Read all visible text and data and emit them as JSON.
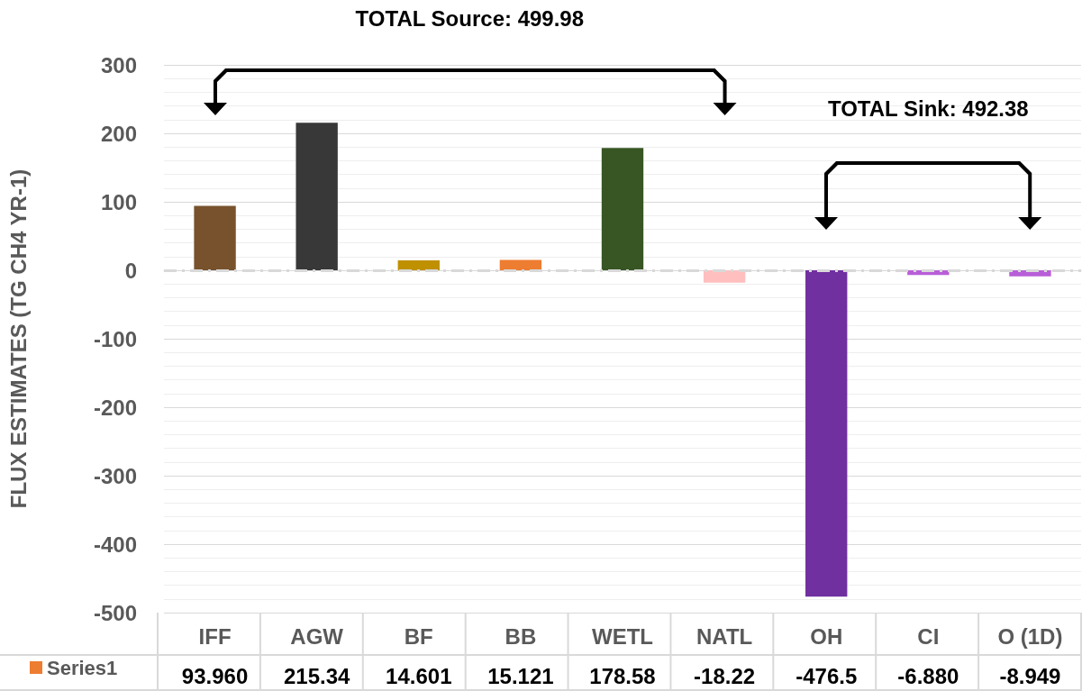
{
  "chart_data": {
    "type": "bar",
    "ylabel": "FLUX ESTIMATES (TG CH4 YR-1)",
    "categories": [
      "IFF",
      "AGW",
      "BF",
      "BB",
      "WETL",
      "NATL",
      "OH",
      "CI",
      "O (1D)"
    ],
    "series": [
      {
        "name": "Series1",
        "color": "#ed7d31",
        "colors": [
          "#77522c",
          "#383838",
          "#bf9000",
          "#ed7d31",
          "#375623",
          "#ffbfbf",
          "#7030a0",
          "#b85ed8",
          "#b85ed8"
        ],
        "values": [
          93.96,
          215.34,
          14.601,
          15.121,
          178.58,
          -18.22,
          -476.5,
          -6.88,
          -8.949
        ],
        "value_labels": [
          "93.960",
          "215.34",
          "14.601",
          "15.121",
          "178.58",
          "-18.22",
          "-476.5",
          "-6.880",
          "-8.949"
        ]
      }
    ],
    "ylim": [
      -500,
      300
    ],
    "yticks": [
      -500,
      -400,
      -300,
      -200,
      -100,
      0,
      100,
      200,
      300
    ],
    "grid": true,
    "legend": "bottom",
    "ref_lines": [
      {
        "axis": "y",
        "value": 0,
        "color": "#d9d9d9",
        "line_style": "dashed"
      }
    ],
    "annotations": [
      "TOTAL Source: 499.98",
      "TOTAL Sink: 492.38"
    ]
  }
}
